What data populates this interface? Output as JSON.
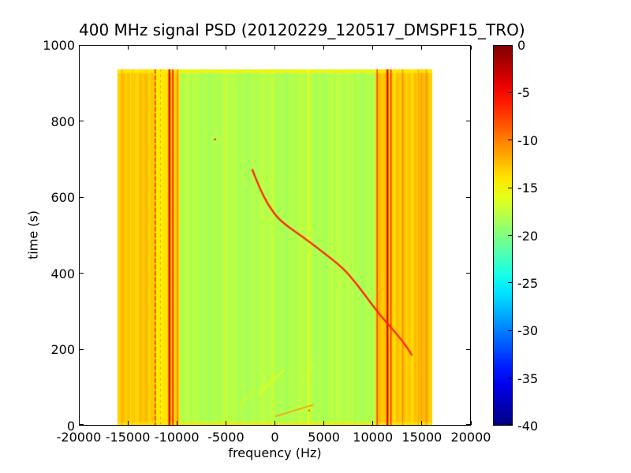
{
  "figure": {
    "background": "#ffffff",
    "text_color": "#000000",
    "frame_color": "#000000"
  },
  "chart_data": {
    "type": "heatmap",
    "title": "400 MHz signal PSD (20120229_120517_DMSPF15_TRO)",
    "xlabel": "frequency (Hz)",
    "ylabel": "time (s)",
    "xlim": [
      -20000,
      20000
    ],
    "ylim": [
      0,
      1000
    ],
    "xticks": [
      -20000,
      -15000,
      -10000,
      -5000,
      0,
      5000,
      10000,
      15000,
      20000
    ],
    "yticks": [
      0,
      200,
      400,
      600,
      800,
      1000
    ],
    "grid": false,
    "colormap": "jet",
    "colorbar": {
      "vmin": -40,
      "vmax": 0,
      "ticks": [
        0,
        -5,
        -10,
        -15,
        -20,
        -25,
        -30,
        -35,
        -40
      ],
      "position": "right"
    },
    "extent": {
      "xmin": -16000,
      "xmax": 16000,
      "tmin": 0,
      "tmax": 935
    },
    "background_db": -18,
    "bands": [
      {
        "xmin": -16000,
        "xmax": -9750,
        "db": -13,
        "texture": 1.0
      },
      {
        "xmin": -12050,
        "xmax": -11050,
        "db": -14.3,
        "texture": 0.5
      },
      {
        "xmin": 10300,
        "xmax": 16000,
        "db": -13,
        "texture": 1.0
      },
      {
        "xmin": 13900,
        "xmax": 16000,
        "db": -12.6,
        "texture": 1.2
      }
    ],
    "edge_strips": [
      {
        "tmin": 0,
        "tmax": 9,
        "db": -14
      },
      {
        "tmin": 926,
        "tmax": 935,
        "db": -14.5
      }
    ],
    "vlines": [
      {
        "x": -15650,
        "db": -11.5,
        "w": 1
      },
      {
        "x": -14600,
        "db": -12,
        "w": 1
      },
      {
        "x": -12250,
        "db": -6.5,
        "w": 1.7,
        "dash": [
          5,
          3
        ]
      },
      {
        "x": -11700,
        "db": -10,
        "w": 1,
        "dash": [
          2,
          5
        ]
      },
      {
        "x": -10800,
        "db": -3.5,
        "w": 2.4
      },
      {
        "x": -10450,
        "db": -5,
        "w": 1.6
      },
      {
        "x": -9950,
        "db": -8.5,
        "w": 1.1
      },
      {
        "x": -4900,
        "db": -16.6,
        "w": 1
      },
      {
        "x": -300,
        "db": -16.3,
        "w": 1
      },
      {
        "x": 3400,
        "db": -15,
        "w": 1.5
      },
      {
        "x": 5800,
        "db": -16.3,
        "w": 1
      },
      {
        "x": 7900,
        "db": -16.5,
        "w": 1
      },
      {
        "x": 10400,
        "db": -7,
        "w": 1.5
      },
      {
        "x": 11450,
        "db": -3.5,
        "w": 2.4
      },
      {
        "x": 11800,
        "db": -6,
        "w": 1.5
      },
      {
        "x": 13000,
        "db": -10,
        "w": 1
      },
      {
        "x": 14600,
        "db": -11,
        "w": 1
      },
      {
        "x": 15400,
        "db": -10.5,
        "w": 1
      }
    ],
    "streaks": [
      {
        "x1": 100,
        "t1": 25,
        "x2": 3900,
        "t2": 55,
        "db": -11,
        "w": 1.5
      },
      {
        "x1": -3600,
        "t1": 50,
        "x2": -2100,
        "t2": 95,
        "db": -14.5,
        "w": 1.2
      },
      {
        "x1": -1600,
        "t1": 85,
        "x2": 900,
        "t2": 145,
        "db": -15,
        "w": 1.2
      },
      {
        "x1": 2600,
        "t1": 115,
        "x2": 4100,
        "t2": 160,
        "db": -15.6,
        "w": 1
      }
    ],
    "dots": [
      {
        "t": 752,
        "f": -6100,
        "db": -5.5,
        "r": 1.2
      },
      {
        "t": 40,
        "f": 3500,
        "db": -8,
        "r": 1.2
      }
    ],
    "doppler_track": {
      "db": -5,
      "halo_db": -9.5,
      "points": [
        [
          186,
          13960
        ],
        [
          207,
          13480
        ],
        [
          248,
          12190
        ],
        [
          290,
          10740
        ],
        [
          331,
          9540
        ],
        [
          373,
          8330
        ],
        [
          414,
          6960
        ],
        [
          455,
          4950
        ],
        [
          497,
          2800
        ],
        [
          538,
          500
        ],
        [
          580,
          -700
        ],
        [
          621,
          -1500
        ],
        [
          672,
          -2300
        ]
      ]
    }
  }
}
